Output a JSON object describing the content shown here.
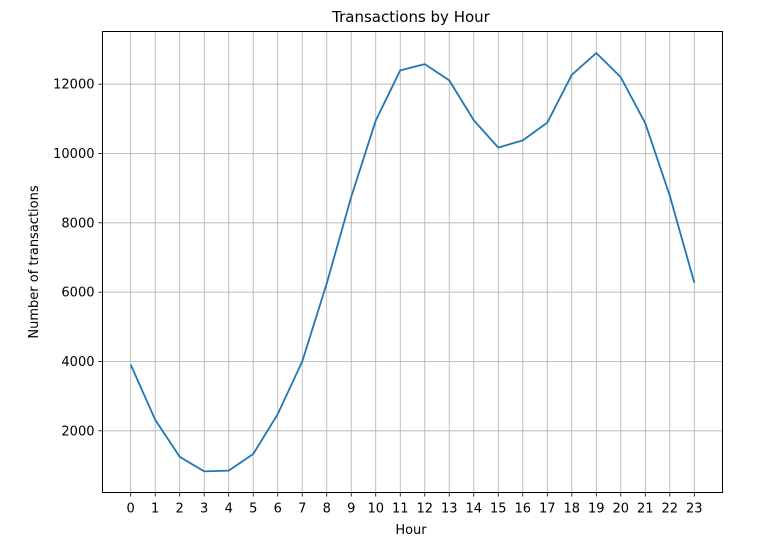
{
  "chart_data": {
    "type": "line",
    "title": "Transactions by Hour",
    "xlabel": "Hour",
    "ylabel": "Number of transactions",
    "x": [
      0,
      1,
      2,
      3,
      4,
      5,
      6,
      7,
      8,
      9,
      10,
      11,
      12,
      13,
      14,
      15,
      16,
      17,
      18,
      19,
      20,
      21,
      22,
      23
    ],
    "x_ticks": [
      "0",
      "1",
      "2",
      "3",
      "4",
      "5",
      "6",
      "7",
      "8",
      "9",
      "10",
      "11",
      "12",
      "13",
      "14",
      "15",
      "16",
      "17",
      "18",
      "19",
      "20",
      "21",
      "22",
      "23"
    ],
    "y_ticks": [
      "2000",
      "4000",
      "6000",
      "8000",
      "10000",
      "12000"
    ],
    "y_tick_values": [
      2000,
      4000,
      6000,
      8000,
      10000,
      12000
    ],
    "series": [
      {
        "values": [
          3910,
          2320,
          1250,
          830,
          850,
          1330,
          2480,
          4000,
          6250,
          8750,
          10950,
          12400,
          12580,
          12110,
          10960,
          10170,
          10380,
          10890,
          12270,
          12900,
          12200,
          10870,
          8780,
          6270
        ],
        "color": "#1f77b4"
      }
    ],
    "xlim": [
      -1.15,
      24.15
    ],
    "ylim": [
      220,
      13520
    ],
    "grid": true
  }
}
